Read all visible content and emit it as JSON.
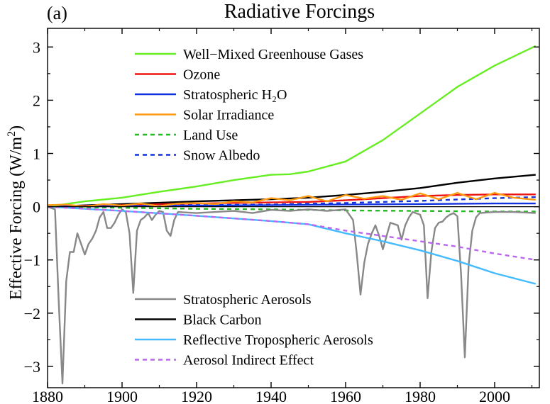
{
  "chart_data": {
    "type": "line",
    "panel_label": "(a)",
    "title": "Radiative Forcings",
    "xlabel": "",
    "ylabel": "Effective Forcing (W/m²)",
    "ylabel_parts": {
      "main": "Effective Forcing (W/m",
      "sup": "2",
      "close": ")"
    },
    "xlim": [
      1880,
      2012
    ],
    "ylim": [
      -3.4,
      3.35
    ],
    "x_ticks": [
      1880,
      1900,
      1920,
      1940,
      1960,
      1980,
      2000
    ],
    "x_tick_labels": [
      "1880",
      "1900",
      "1920",
      "1940",
      "1960",
      "1980",
      "2000"
    ],
    "y_ticks": [
      -3,
      -2,
      -1,
      0,
      1,
      2,
      3
    ],
    "y_tick_labels": [
      "−3",
      "−2",
      "−1",
      "0",
      "1",
      "2",
      "3"
    ],
    "legend_placement": "top-center and bottom-center",
    "grid": false,
    "series": [
      {
        "name": "Well−Mixed Greenhouse Gases",
        "color": "#66ee22",
        "dash": "solid",
        "legend_group": "top",
        "x": [
          1880,
          1890,
          1900,
          1910,
          1920,
          1930,
          1940,
          1945,
          1950,
          1960,
          1970,
          1980,
          1990,
          2000,
          2011
        ],
        "y": [
          0,
          0.1,
          0.17,
          0.28,
          0.38,
          0.5,
          0.6,
          0.61,
          0.66,
          0.85,
          1.25,
          1.75,
          2.25,
          2.65,
          3.02
        ]
      },
      {
        "name": "Ozone",
        "color": "#ee1111",
        "dash": "solid",
        "legend_group": "top",
        "x": [
          1880,
          1900,
          1920,
          1940,
          1950,
          1960,
          1970,
          1980,
          1990,
          2000,
          2011
        ],
        "y": [
          0,
          0.03,
          0.06,
          0.08,
          0.09,
          0.12,
          0.16,
          0.2,
          0.22,
          0.23,
          0.23
        ]
      },
      {
        "name": "Stratospheric H₂O",
        "color": "#1133dd",
        "dash": "solid",
        "legend_group": "top",
        "x": [
          1880,
          1900,
          1920,
          1940,
          1960,
          1980,
          2000,
          2011
        ],
        "y": [
          0,
          0.01,
          0.02,
          0.03,
          0.04,
          0.05,
          0.06,
          0.06
        ]
      },
      {
        "name": "Solar Irradiance",
        "color": "#ff9911",
        "dash": "solid",
        "legend_group": "top",
        "x": [
          1880,
          1885,
          1890,
          1895,
          1900,
          1905,
          1910,
          1915,
          1920,
          1925,
          1930,
          1935,
          1940,
          1945,
          1950,
          1955,
          1960,
          1965,
          1970,
          1975,
          1980,
          1985,
          1990,
          1995,
          2000,
          2005,
          2011
        ],
        "y": [
          0.03,
          0.04,
          0.0,
          0.05,
          0.02,
          0.06,
          0.01,
          0.06,
          0.07,
          0.05,
          0.1,
          0.08,
          0.16,
          0.12,
          0.2,
          0.1,
          0.22,
          0.15,
          0.2,
          0.13,
          0.25,
          0.14,
          0.26,
          0.14,
          0.26,
          0.17,
          0.13
        ]
      },
      {
        "name": "Land Use",
        "color": "#22bb22",
        "dash": "dashed",
        "legend_group": "top",
        "x": [
          1880,
          1900,
          1920,
          1940,
          1960,
          1980,
          2000,
          2011
        ],
        "y": [
          0,
          -0.02,
          -0.04,
          -0.05,
          -0.07,
          -0.08,
          -0.09,
          -0.09
        ]
      },
      {
        "name": "Snow Albedo",
        "color": "#1133dd",
        "dash": "dashed",
        "legend_group": "top",
        "x": [
          1880,
          1900,
          1920,
          1940,
          1960,
          1980,
          2000,
          2011
        ],
        "y": [
          0,
          0.01,
          0.03,
          0.04,
          0.07,
          0.11,
          0.16,
          0.18
        ]
      },
      {
        "name": "Stratospheric Aerosols",
        "color": "#888888",
        "dash": "solid",
        "legend_group": "bottom",
        "x": [
          1880,
          1882,
          1883,
          1884,
          1885,
          1886,
          1887,
          1888,
          1889,
          1890,
          1891,
          1892,
          1893,
          1894,
          1895,
          1896,
          1897,
          1898,
          1899,
          1900,
          1901,
          1902,
          1903,
          1904,
          1905,
          1906,
          1907,
          1908,
          1909,
          1910,
          1911,
          1912,
          1913,
          1914,
          1915,
          1920,
          1925,
          1930,
          1935,
          1940,
          1945,
          1950,
          1955,
          1960,
          1962,
          1963,
          1964,
          1965,
          1966,
          1967,
          1968,
          1969,
          1970,
          1972,
          1974,
          1975,
          1976,
          1977,
          1978,
          1980,
          1981,
          1982,
          1983,
          1984,
          1985,
          1986,
          1987,
          1988,
          1989,
          1990,
          1991,
          1992,
          1993,
          1994,
          1995,
          1996,
          2000,
          2005,
          2011
        ],
        "y": [
          0,
          -0.05,
          -1.8,
          -3.32,
          -1.4,
          -0.85,
          -0.85,
          -0.5,
          -0.7,
          -0.9,
          -0.7,
          -0.6,
          -0.45,
          -0.2,
          -0.1,
          -0.4,
          -0.4,
          -0.3,
          -0.15,
          -0.05,
          -0.1,
          -0.5,
          -1.62,
          -0.45,
          -0.25,
          -0.2,
          -0.12,
          -0.25,
          -0.15,
          -0.08,
          -0.1,
          -0.45,
          -0.55,
          -0.25,
          -0.1,
          -0.12,
          -0.1,
          -0.08,
          -0.12,
          -0.06,
          -0.08,
          -0.05,
          -0.08,
          -0.05,
          -0.25,
          -0.9,
          -1.65,
          -1.05,
          -0.7,
          -0.5,
          -0.35,
          -0.55,
          -0.8,
          -0.3,
          -0.35,
          -0.62,
          -0.35,
          -0.2,
          -0.1,
          -0.15,
          -0.35,
          -1.72,
          -0.85,
          -0.4,
          -0.3,
          -0.28,
          -0.2,
          -0.15,
          -0.12,
          -0.18,
          -1.3,
          -2.83,
          -1.1,
          -0.45,
          -0.2,
          -0.12,
          -0.1,
          -0.1,
          -0.12
        ]
      },
      {
        "name": "Black Carbon",
        "color": "#000000",
        "dash": "solid",
        "legend_group": "bottom",
        "x": [
          1880,
          1900,
          1920,
          1940,
          1950,
          1960,
          1970,
          1980,
          1990,
          2000,
          2011
        ],
        "y": [
          0,
          0.05,
          0.1,
          0.14,
          0.17,
          0.22,
          0.28,
          0.35,
          0.45,
          0.53,
          0.6
        ]
      },
      {
        "name": "Reflective Tropospheric Aerosols",
        "color": "#44bbff",
        "dash": "solid",
        "legend_group": "bottom",
        "x": [
          1880,
          1900,
          1920,
          1940,
          1950,
          1960,
          1970,
          1980,
          1990,
          2000,
          2011
        ],
        "y": [
          0,
          -0.08,
          -0.17,
          -0.27,
          -0.33,
          -0.5,
          -0.65,
          -0.82,
          -1.02,
          -1.25,
          -1.45
        ]
      },
      {
        "name": "Aerosol Indirect Effect",
        "color": "#bb66ee",
        "dash": "dashed",
        "legend_group": "bottom",
        "x": [
          1880,
          1900,
          1920,
          1940,
          1950,
          1960,
          1970,
          1980,
          1990,
          2000,
          2011
        ],
        "y": [
          0,
          -0.08,
          -0.17,
          -0.27,
          -0.33,
          -0.45,
          -0.55,
          -0.65,
          -0.75,
          -0.88,
          -1.0
        ]
      }
    ]
  }
}
